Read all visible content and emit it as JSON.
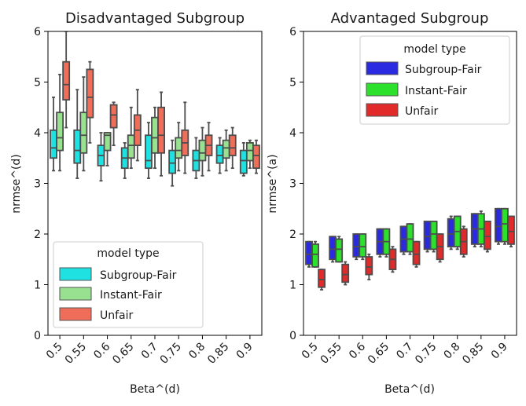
{
  "chart_data": [
    {
      "type": "box",
      "title": "Disadvantaged Subgroup",
      "xlabel": "Beta^(d)",
      "ylabel": "nrmse^(d)",
      "ylim": [
        0,
        6
      ],
      "yticks": [
        "0",
        "1",
        "2",
        "3",
        "4",
        "5",
        "6"
      ],
      "categories": [
        "0.5",
        "0.55",
        "0.6",
        "0.65",
        "0.7",
        "0.75",
        "0.8",
        "0.85",
        "0.9"
      ],
      "grid": false,
      "legend": {
        "title": "model type",
        "position": "lower-left"
      },
      "series": [
        {
          "name": "Subgroup-Fair",
          "color": "#1fe1e1",
          "boxes": [
            {
              "whislo": 3.25,
              "q1": 3.5,
              "med": 3.7,
              "q3": 4.05,
              "whishi": 4.7
            },
            {
              "whislo": 3.1,
              "q1": 3.4,
              "med": 3.65,
              "q3": 4.05,
              "whishi": 4.85
            },
            {
              "whislo": 3.05,
              "q1": 3.35,
              "med": 3.55,
              "q3": 3.75,
              "whishi": 4.0
            },
            {
              "whislo": 3.1,
              "q1": 3.3,
              "med": 3.5,
              "q3": 3.7,
              "whishi": 3.8
            },
            {
              "whislo": 3.1,
              "q1": 3.3,
              "med": 3.45,
              "q3": 3.95,
              "whishi": 4.2
            },
            {
              "whislo": 2.95,
              "q1": 3.2,
              "med": 3.4,
              "q3": 3.65,
              "whishi": 3.85
            },
            {
              "whislo": 3.1,
              "q1": 3.25,
              "med": 3.45,
              "q3": 3.65,
              "whishi": 3.9
            },
            {
              "whislo": 3.2,
              "q1": 3.4,
              "med": 3.55,
              "q3": 3.75,
              "whishi": 3.9
            },
            {
              "whislo": 3.15,
              "q1": 3.2,
              "med": 3.45,
              "q3": 3.65,
              "whishi": 3.8
            }
          ]
        },
        {
          "name": "Instant-Fair",
          "color": "#98e191",
          "boxes": [
            {
              "whislo": 3.25,
              "q1": 3.65,
              "med": 3.9,
              "q3": 4.4,
              "whishi": 5.15
            },
            {
              "whislo": 3.25,
              "q1": 3.6,
              "med": 3.95,
              "q3": 4.4,
              "whishi": 5.1
            },
            {
              "whislo": 3.35,
              "q1": 3.65,
              "med": 3.95,
              "q3": 4.0,
              "whishi": 4.0
            },
            {
              "whislo": 3.3,
              "q1": 3.5,
              "med": 3.75,
              "q3": 3.95,
              "whishi": 4.5
            },
            {
              "whislo": 3.3,
              "q1": 3.6,
              "med": 3.9,
              "q3": 4.3,
              "whishi": 4.5
            },
            {
              "whislo": 3.25,
              "q1": 3.5,
              "med": 3.65,
              "q3": 3.9,
              "whishi": 4.2
            },
            {
              "whislo": 3.15,
              "q1": 3.45,
              "med": 3.6,
              "q3": 3.85,
              "whishi": 4.1
            },
            {
              "whislo": 3.25,
              "q1": 3.5,
              "med": 3.7,
              "q3": 3.85,
              "whishi": 4.05
            },
            {
              "whislo": 3.3,
              "q1": 3.45,
              "med": 3.65,
              "q3": 3.8,
              "whishi": 3.85
            }
          ]
        },
        {
          "name": "Unfair",
          "color": "#ee6e5a",
          "boxes": [
            {
              "whislo": 4.1,
              "q1": 4.65,
              "med": 4.95,
              "q3": 5.4,
              "whishi": 6.0
            },
            {
              "whislo": 3.8,
              "q1": 4.3,
              "med": 4.7,
              "q3": 5.25,
              "whishi": 5.4
            },
            {
              "whislo": 3.75,
              "q1": 4.1,
              "med": 4.35,
              "q3": 4.55,
              "whishi": 4.6
            },
            {
              "whislo": 3.45,
              "q1": 3.75,
              "med": 4.05,
              "q3": 4.35,
              "whishi": 4.85
            },
            {
              "whislo": 3.15,
              "q1": 3.6,
              "med": 3.95,
              "q3": 4.5,
              "whishi": 4.8
            },
            {
              "whislo": 3.2,
              "q1": 3.55,
              "med": 3.8,
              "q3": 4.05,
              "whishi": 4.6
            },
            {
              "whislo": 3.25,
              "q1": 3.55,
              "med": 3.75,
              "q3": 3.95,
              "whishi": 4.2
            },
            {
              "whislo": 3.3,
              "q1": 3.55,
              "med": 3.7,
              "q3": 3.95,
              "whishi": 4.1
            },
            {
              "whislo": 3.2,
              "q1": 3.3,
              "med": 3.55,
              "q3": 3.75,
              "whishi": 3.85
            }
          ]
        }
      ]
    },
    {
      "type": "box",
      "title": "Advantaged Subgroup",
      "xlabel": "Beta^(d)",
      "ylabel": "nrmse^(a)",
      "ylim": [
        0,
        6
      ],
      "yticks": [
        "0",
        "1",
        "2",
        "3",
        "4",
        "5",
        "6"
      ],
      "categories": [
        "0.5",
        "0.55",
        "0.6",
        "0.65",
        "0.7",
        "0.75",
        "0.8",
        "0.85",
        "0.9"
      ],
      "grid": false,
      "legend": {
        "title": "model type",
        "position": "upper-right"
      },
      "series": [
        {
          "name": "Subgroup-Fair",
          "color": "#2a2ae1",
          "boxes": [
            {
              "whislo": 1.35,
              "q1": 1.4,
              "med": 1.6,
              "q3": 1.85,
              "whishi": 1.85
            },
            {
              "whislo": 1.45,
              "q1": 1.5,
              "med": 1.7,
              "q3": 1.95,
              "whishi": 1.95
            },
            {
              "whislo": 1.5,
              "q1": 1.55,
              "med": 1.75,
              "q3": 2.0,
              "whishi": 2.0
            },
            {
              "whislo": 1.55,
              "q1": 1.6,
              "med": 1.85,
              "q3": 2.1,
              "whishi": 2.1
            },
            {
              "whislo": 1.6,
              "q1": 1.65,
              "med": 1.9,
              "q3": 2.15,
              "whishi": 2.15
            },
            {
              "whislo": 1.65,
              "q1": 1.7,
              "med": 1.95,
              "q3": 2.25,
              "whishi": 2.25
            },
            {
              "whislo": 1.7,
              "q1": 1.75,
              "med": 2.0,
              "q3": 2.3,
              "whishi": 2.35
            },
            {
              "whislo": 1.75,
              "q1": 1.8,
              "med": 2.1,
              "q3": 2.4,
              "whishi": 2.4
            },
            {
              "whislo": 1.8,
              "q1": 1.85,
              "med": 2.15,
              "q3": 2.5,
              "whishi": 2.5
            }
          ]
        },
        {
          "name": "Instant-Fair",
          "color": "#2ce12c",
          "boxes": [
            {
              "whislo": 1.35,
              "q1": 1.35,
              "med": 1.6,
              "q3": 1.8,
              "whishi": 1.85
            },
            {
              "whislo": 1.45,
              "q1": 1.45,
              "med": 1.7,
              "q3": 1.9,
              "whishi": 1.95
            },
            {
              "whislo": 1.5,
              "q1": 1.55,
              "med": 1.75,
              "q3": 2.0,
              "whishi": 2.0
            },
            {
              "whislo": 1.55,
              "q1": 1.6,
              "med": 1.85,
              "q3": 2.1,
              "whishi": 2.1
            },
            {
              "whislo": 1.6,
              "q1": 1.65,
              "med": 1.9,
              "q3": 2.2,
              "whishi": 2.2
            },
            {
              "whislo": 1.65,
              "q1": 1.7,
              "med": 2.0,
              "q3": 2.25,
              "whishi": 2.25
            },
            {
              "whislo": 1.7,
              "q1": 1.75,
              "med": 2.05,
              "q3": 2.35,
              "whishi": 2.35
            },
            {
              "whislo": 1.75,
              "q1": 1.8,
              "med": 2.1,
              "q3": 2.4,
              "whishi": 2.45
            },
            {
              "whislo": 1.8,
              "q1": 1.85,
              "med": 2.2,
              "q3": 2.5,
              "whishi": 2.5
            }
          ]
        },
        {
          "name": "Unfair",
          "color": "#e12a2a",
          "boxes": [
            {
              "whislo": 0.9,
              "q1": 0.95,
              "med": 1.1,
              "q3": 1.3,
              "whishi": 1.3
            },
            {
              "whislo": 1.0,
              "q1": 1.05,
              "med": 1.2,
              "q3": 1.4,
              "whishi": 1.45
            },
            {
              "whislo": 1.1,
              "q1": 1.2,
              "med": 1.35,
              "q3": 1.55,
              "whishi": 1.6
            },
            {
              "whislo": 1.25,
              "q1": 1.3,
              "med": 1.5,
              "q3": 1.7,
              "whishi": 1.75
            },
            {
              "whislo": 1.35,
              "q1": 1.4,
              "med": 1.6,
              "q3": 1.85,
              "whishi": 1.85
            },
            {
              "whislo": 1.45,
              "q1": 1.5,
              "med": 1.75,
              "q3": 2.0,
              "whishi": 2.0
            },
            {
              "whislo": 1.55,
              "q1": 1.6,
              "med": 1.85,
              "q3": 2.1,
              "whishi": 2.15
            },
            {
              "whislo": 1.65,
              "q1": 1.7,
              "med": 1.95,
              "q3": 2.25,
              "whishi": 2.25
            },
            {
              "whislo": 1.75,
              "q1": 1.8,
              "med": 2.05,
              "q3": 2.35,
              "whishi": 2.35
            }
          ]
        }
      ]
    }
  ]
}
